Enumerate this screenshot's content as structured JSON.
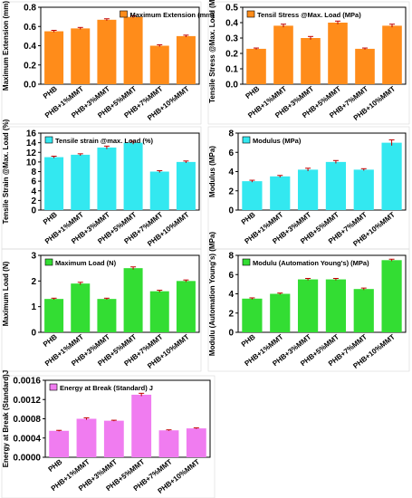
{
  "chart_data": [
    {
      "type": "bar",
      "color": "#FF8C1A",
      "categories": [
        "PHB",
        "PHB+1%MMT",
        "PHB+3%MMT",
        "PHB+5%MMT",
        "PHB+7%MMT",
        "PHB+10%MMT"
      ],
      "values": [
        0.55,
        0.58,
        0.67,
        0.7,
        0.4,
        0.5
      ],
      "errors": [
        0.01,
        0.01,
        0.01,
        0.01,
        0.01,
        0.01
      ],
      "ylabel": "Maximum Extension (mm)",
      "legend": "Maximum Extension (mm)",
      "legend_position": "top-right",
      "ylim": [
        0.0,
        0.8
      ],
      "yticks": [
        "0.0",
        "0.2",
        "0.4",
        "0.6",
        "0.8"
      ],
      "ytick_values": [
        0.0,
        0.2,
        0.4,
        0.6,
        0.8
      ]
    },
    {
      "type": "bar",
      "color": "#FF8C1A",
      "categories": [
        "PHB",
        "PHB+1%MMT",
        "PHB+3%MMT",
        "PHB+5%MMT",
        "PHB+7%MMT",
        "PHB+10%MMT"
      ],
      "values": [
        0.23,
        0.38,
        0.3,
        0.4,
        0.23,
        0.38
      ],
      "errors": [
        0.005,
        0.01,
        0.01,
        0.01,
        0.005,
        0.01
      ],
      "ylabel": "Tensile Stress @Max. Load (MPa)",
      "legend": "Tensil Stress @Max. Load (MPa)",
      "legend_position": "top-left",
      "ylim": [
        0.0,
        0.5
      ],
      "yticks": [
        "0.0",
        "0.1",
        "0.2",
        "0.3",
        "0.4",
        "0.5"
      ],
      "ytick_values": [
        0.0,
        0.1,
        0.2,
        0.3,
        0.4,
        0.5
      ]
    },
    {
      "type": "bar",
      "color": "#33E8F0",
      "categories": [
        "PHB",
        "PHB+1%MMT",
        "PHB+3%MMT",
        "PHB+5%MMT",
        "PHB+7%MMT",
        "PHB+10%MMT"
      ],
      "values": [
        11.0,
        11.5,
        13.0,
        14.0,
        8.0,
        10.0
      ],
      "errors": [
        0.2,
        0.2,
        0.3,
        0.3,
        0.2,
        0.2
      ],
      "ylabel": "Tensile Strain @Max. Load (%)",
      "legend": "Tensile strain @max. Load (%)",
      "legend_position": "top-left",
      "ylim": [
        0,
        16
      ],
      "yticks": [
        "0",
        "2",
        "4",
        "6",
        "8",
        "10",
        "12",
        "14",
        "16"
      ],
      "ytick_values": [
        0,
        2,
        4,
        6,
        8,
        10,
        12,
        14,
        16
      ]
    },
    {
      "type": "bar",
      "color": "#33E8F0",
      "categories": [
        "PHB",
        "PHB+1%MMT",
        "PHB+3%MMT",
        "PHB+5%MMT",
        "PHB+7%MMT",
        "PHB+10%MMT"
      ],
      "values": [
        3.0,
        3.5,
        4.2,
        5.0,
        4.2,
        7.0
      ],
      "errors": [
        0.1,
        0.1,
        0.15,
        0.15,
        0.1,
        0.3
      ],
      "ylabel": "Modulus (MPa)",
      "legend": "Modulus (MPa)",
      "legend_position": "top-left",
      "ylim": [
        0,
        8
      ],
      "yticks": [
        "0",
        "2",
        "4",
        "6",
        "8"
      ],
      "ytick_values": [
        0,
        2,
        4,
        6,
        8
      ]
    },
    {
      "type": "bar",
      "color": "#33DD33",
      "categories": [
        "PHB",
        "PHB+1%MMT",
        "PHB+3%MMT",
        "PHB+5%MMT",
        "PHB+7%MMT",
        "PHB+10%MMT"
      ],
      "values": [
        1.3,
        1.9,
        1.3,
        2.5,
        1.6,
        2.0
      ],
      "errors": [
        0.03,
        0.05,
        0.03,
        0.05,
        0.04,
        0.04
      ],
      "ylabel": "Maximum Load (N)",
      "legend": "Maximum Load (N)",
      "legend_position": "top-left",
      "ylim": [
        0,
        3
      ],
      "yticks": [
        "0",
        "1",
        "2",
        "3"
      ],
      "ytick_values": [
        0,
        1,
        2,
        3
      ]
    },
    {
      "type": "bar",
      "color": "#33DD33",
      "categories": [
        "PHB",
        "PHB+1%MMT",
        "PHB+3%MMT",
        "PHB+5%MMT",
        "PHB+7%MMT",
        "PHB+10%MMT"
      ],
      "values": [
        3.5,
        4.0,
        5.5,
        5.5,
        4.5,
        7.5
      ],
      "errors": [
        0.08,
        0.08,
        0.1,
        0.1,
        0.1,
        0.1
      ],
      "ylabel": "Modulu (Automation Young's) (MPa)",
      "legend": "Modulu (Automation Young's) (MPa)",
      "legend_position": "top-left",
      "ylim": [
        0,
        8
      ],
      "yticks": [
        "0",
        "2",
        "4",
        "6",
        "8"
      ],
      "ytick_values": [
        0,
        2,
        4,
        6,
        8
      ]
    },
    {
      "type": "bar",
      "color": "#F07CF0",
      "categories": [
        "PHB",
        "PHB+1%MMT",
        "PHB+3%MMT",
        "PHB+5%MMT",
        "PHB+7%MMT",
        "PHB+10%MMT"
      ],
      "values": [
        0.00055,
        0.0008,
        0.00076,
        0.0013,
        0.00056,
        0.0006
      ],
      "errors": [
        1e-05,
        2e-05,
        1e-05,
        3e-05,
        1e-05,
        1e-05
      ],
      "ylabel": "Energy at Break (Standard)J",
      "legend": "Energy at Break (Standard) J",
      "legend_position": "top-left",
      "ylim": [
        0.0,
        0.0016
      ],
      "yticks": [
        "0.0000",
        "0.0004",
        "0.0008",
        "0.0012",
        "0.0016"
      ],
      "ytick_values": [
        0.0,
        0.0004,
        0.0008,
        0.0012,
        0.0016
      ]
    }
  ]
}
